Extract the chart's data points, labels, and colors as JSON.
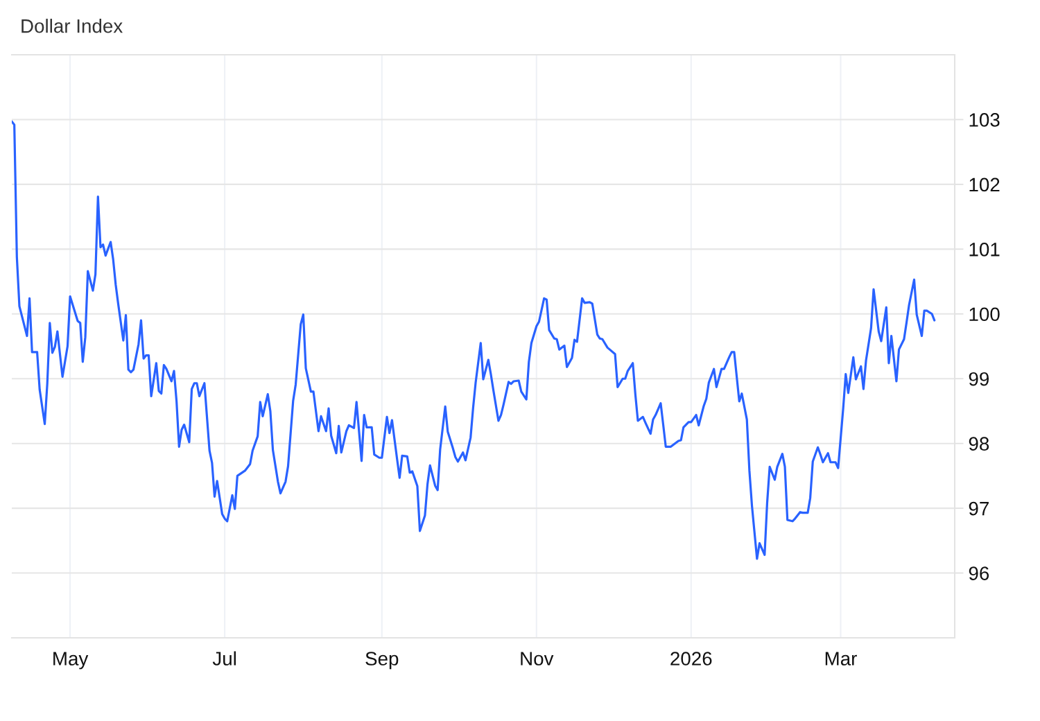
{
  "chart_data": {
    "type": "line",
    "title": "Dollar Index",
    "color": "#2962ff",
    "x": [
      "2025-04-08",
      "2025-04-09",
      "2025-04-10",
      "2025-04-11",
      "2025-04-14",
      "2025-04-15",
      "2025-04-16",
      "2025-04-18",
      "2025-04-19",
      "2025-04-21",
      "2025-04-22",
      "2025-04-23",
      "2025-04-24",
      "2025-04-25",
      "2025-04-26",
      "2025-04-28",
      "2025-04-30",
      "2025-05-01",
      "2025-05-04",
      "2025-05-05",
      "2025-05-06",
      "2025-05-07",
      "2025-05-08",
      "2025-05-10",
      "2025-05-11",
      "2025-05-12",
      "2025-05-13",
      "2025-05-14",
      "2025-05-15",
      "2025-05-17",
      "2025-05-18",
      "2025-05-19",
      "2025-05-20",
      "2025-05-22",
      "2025-05-23",
      "2025-05-24",
      "2025-05-25",
      "2025-05-26",
      "2025-05-28",
      "2025-05-29",
      "2025-05-30",
      "2025-05-31",
      "2025-06-01",
      "2025-06-02",
      "2025-06-04",
      "2025-06-05",
      "2025-06-06",
      "2025-06-07",
      "2025-06-08",
      "2025-06-10",
      "2025-06-11",
      "2025-06-12",
      "2025-06-13",
      "2025-06-14",
      "2025-06-15",
      "2025-06-17",
      "2025-06-18",
      "2025-06-19",
      "2025-06-20",
      "2025-06-21",
      "2025-06-23",
      "2025-06-24",
      "2025-06-25",
      "2025-06-26",
      "2025-06-27",
      "2025-06-28",
      "2025-06-30",
      "2025-07-01",
      "2025-07-02",
      "2025-07-04",
      "2025-07-05",
      "2025-07-06",
      "2025-07-09",
      "2025-07-11",
      "2025-07-12",
      "2025-07-14",
      "2025-07-15",
      "2025-07-16",
      "2025-07-18",
      "2025-07-19",
      "2025-07-20",
      "2025-07-22",
      "2025-07-23",
      "2025-07-25",
      "2025-07-26",
      "2025-07-28",
      "2025-07-29",
      "2025-07-31",
      "2025-08-01",
      "2025-08-02",
      "2025-08-04",
      "2025-08-05",
      "2025-08-07",
      "2025-08-08",
      "2025-08-10",
      "2025-08-11",
      "2025-08-12",
      "2025-08-14",
      "2025-08-15",
      "2025-08-16",
      "2025-08-18",
      "2025-08-19",
      "2025-08-21",
      "2025-08-22",
      "2025-08-24",
      "2025-08-25",
      "2025-08-26",
      "2025-08-28",
      "2025-08-29",
      "2025-08-31",
      "2025-09-01",
      "2025-09-03",
      "2025-09-04",
      "2025-09-05",
      "2025-09-07",
      "2025-09-08",
      "2025-09-09",
      "2025-09-11",
      "2025-09-12",
      "2025-09-13",
      "2025-09-15",
      "2025-09-16",
      "2025-09-18",
      "2025-09-19",
      "2025-09-20",
      "2025-09-22",
      "2025-09-23",
      "2025-09-24",
      "2025-09-26",
      "2025-09-27",
      "2025-09-29",
      "2025-09-30",
      "2025-10-01",
      "2025-10-03",
      "2025-10-04",
      "2025-10-06",
      "2025-10-07",
      "2025-10-08",
      "2025-10-10",
      "2025-10-11",
      "2025-10-13",
      "2025-10-14",
      "2025-10-15",
      "2025-10-17",
      "2025-10-18",
      "2025-10-19",
      "2025-10-21",
      "2025-10-22",
      "2025-10-23",
      "2025-10-25",
      "2025-10-26",
      "2025-10-28",
      "2025-10-29",
      "2025-10-30",
      "2025-11-01",
      "2025-11-02",
      "2025-11-04",
      "2025-11-05",
      "2025-11-06",
      "2025-11-08",
      "2025-11-09",
      "2025-11-10",
      "2025-11-12",
      "2025-11-13",
      "2025-11-15",
      "2025-11-16",
      "2025-11-17",
      "2025-11-19",
      "2025-11-20",
      "2025-11-22",
      "2025-11-23",
      "2025-11-25",
      "2025-11-26",
      "2025-11-27",
      "2025-11-29",
      "2025-12-02",
      "2025-12-03",
      "2025-12-05",
      "2025-12-06",
      "2025-12-07",
      "2025-12-09",
      "2025-12-10",
      "2025-12-11",
      "2025-12-13",
      "2025-12-14",
      "2025-12-16",
      "2025-12-17",
      "2025-12-18",
      "2025-12-20",
      "2025-12-21",
      "2025-12-22",
      "2025-12-24",
      "2025-12-25",
      "2025-12-27",
      "2025-12-28",
      "2025-12-29",
      "2025-12-31",
      "2026-01-01",
      "2026-01-03",
      "2026-01-04",
      "2026-01-06",
      "2026-01-07",
      "2026-01-08",
      "2026-01-10",
      "2026-01-11",
      "2026-01-13",
      "2026-01-14",
      "2026-01-16",
      "2026-01-17",
      "2026-01-18",
      "2026-01-20",
      "2026-01-21",
      "2026-01-23",
      "2026-01-24",
      "2026-01-25",
      "2026-01-27",
      "2026-01-28",
      "2026-01-30",
      "2026-01-31",
      "2026-02-01",
      "2026-02-03",
      "2026-02-04",
      "2026-02-06",
      "2026-02-07",
      "2026-02-08",
      "2026-02-10",
      "2026-02-11",
      "2026-02-13",
      "2026-02-14",
      "2026-02-16",
      "2026-02-17",
      "2026-02-18",
      "2026-02-20",
      "2026-02-21",
      "2026-02-22",
      "2026-02-24",
      "2026-02-25",
      "2026-02-27",
      "2026-02-28",
      "2026-03-02",
      "2026-03-03",
      "2026-03-04",
      "2026-03-06",
      "2026-03-07",
      "2026-03-09",
      "2026-03-10",
      "2026-03-11",
      "2026-03-13",
      "2026-03-14",
      "2026-03-16",
      "2026-03-17",
      "2026-03-19",
      "2026-03-20",
      "2026-03-21",
      "2026-03-23",
      "2026-03-24",
      "2026-03-26",
      "2026-03-27",
      "2026-03-28",
      "2026-03-30",
      "2026-03-31",
      "2026-04-02",
      "2026-04-03",
      "2026-04-04",
      "2026-04-06",
      "2026-04-07"
    ],
    "values": [
      102.97,
      102.92,
      100.88,
      100.12,
      99.66,
      100.24,
      99.41,
      99.41,
      98.83,
      98.3,
      98.92,
      99.86,
      99.4,
      99.49,
      99.73,
      99.03,
      99.5,
      100.27,
      99.89,
      99.86,
      99.26,
      99.64,
      100.66,
      100.36,
      100.61,
      101.81,
      101.03,
      101.07,
      100.9,
      101.11,
      100.84,
      100.45,
      100.15,
      99.59,
      99.98,
      99.14,
      99.1,
      99.14,
      99.53,
      99.9,
      99.31,
      99.36,
      99.36,
      98.73,
      99.24,
      98.81,
      98.77,
      99.21,
      99.15,
      98.96,
      99.12,
      98.65,
      97.95,
      98.21,
      98.29,
      98.02,
      98.84,
      98.93,
      98.93,
      98.73,
      98.93,
      98.41,
      97.89,
      97.7,
      97.18,
      97.42,
      96.91,
      96.84,
      96.8,
      97.2,
      96.99,
      97.5,
      97.58,
      97.68,
      97.89,
      98.11,
      98.64,
      98.42,
      98.76,
      98.5,
      97.9,
      97.41,
      97.23,
      97.41,
      97.65,
      98.66,
      98.91,
      99.84,
      99.99,
      99.16,
      98.8,
      98.8,
      98.19,
      98.42,
      98.19,
      98.54,
      98.12,
      97.85,
      98.27,
      97.86,
      98.19,
      98.28,
      98.24,
      98.64,
      97.73,
      98.44,
      98.25,
      98.25,
      97.83,
      97.78,
      97.78,
      98.41,
      98.16,
      98.36,
      97.76,
      97.47,
      97.81,
      97.8,
      97.55,
      97.57,
      97.34,
      96.65,
      96.89,
      97.37,
      97.66,
      97.35,
      97.28,
      97.91,
      98.57,
      98.18,
      97.93,
      97.79,
      97.72,
      97.86,
      97.74,
      98.09,
      98.55,
      98.94,
      99.55,
      98.99,
      99.29,
      99.07,
      98.82,
      98.35,
      98.44,
      98.6,
      98.95,
      98.92,
      98.96,
      98.97,
      98.8,
      98.68,
      99.26,
      99.55,
      99.81,
      99.88,
      100.24,
      100.22,
      99.75,
      99.62,
      99.61,
      99.45,
      99.51,
      99.18,
      99.32,
      99.6,
      99.57,
      100.24,
      100.17,
      100.18,
      100.16,
      99.68,
      99.62,
      99.61,
      99.48,
      99.38,
      98.87,
      99.0,
      99.0,
      99.12,
      99.24,
      98.76,
      98.35,
      98.41,
      98.32,
      98.15,
      98.37,
      98.44,
      98.62,
      98.29,
      97.95,
      97.95,
      97.98,
      98.04,
      98.05,
      98.25,
      98.33,
      98.33,
      98.44,
      98.28,
      98.58,
      98.69,
      98.94,
      99.15,
      98.87,
      99.15,
      99.15,
      99.33,
      99.41,
      99.41,
      98.65,
      98.77,
      98.37,
      97.58,
      97.04,
      96.22,
      96.46,
      96.28,
      97.08,
      97.64,
      97.44,
      97.64,
      97.84,
      97.64,
      96.82,
      96.8,
      96.84,
      96.94,
      96.93,
      96.93,
      97.16,
      97.72,
      97.94,
      97.83,
      97.71,
      97.85,
      97.71,
      97.71,
      97.62,
      98.54,
      99.07,
      98.78,
      99.33,
      98.99,
      99.19,
      98.84,
      99.28,
      99.78,
      100.38,
      99.73,
      99.58,
      100.1,
      99.24,
      99.66,
      98.96,
      99.45,
      99.61,
      99.87,
      100.14,
      100.53,
      99.99,
      99.66,
      100.05,
      100.05,
      100.0,
      99.9
    ],
    "xlim": [
      "2025-04-08",
      "2026-04-15"
    ],
    "xticks": [
      {
        "value": "2025-05-01",
        "label": "May"
      },
      {
        "value": "2025-07-01",
        "label": "Jul"
      },
      {
        "value": "2025-09-01",
        "label": "Sep"
      },
      {
        "value": "2025-11-01",
        "label": "Nov"
      },
      {
        "value": "2026-01-01",
        "label": "2026"
      },
      {
        "value": "2026-03-01",
        "label": "Mar"
      }
    ],
    "ylim": [
      95,
      104
    ],
    "yticks": [
      96,
      97,
      98,
      99,
      100,
      101,
      102,
      103
    ],
    "grid": true
  }
}
